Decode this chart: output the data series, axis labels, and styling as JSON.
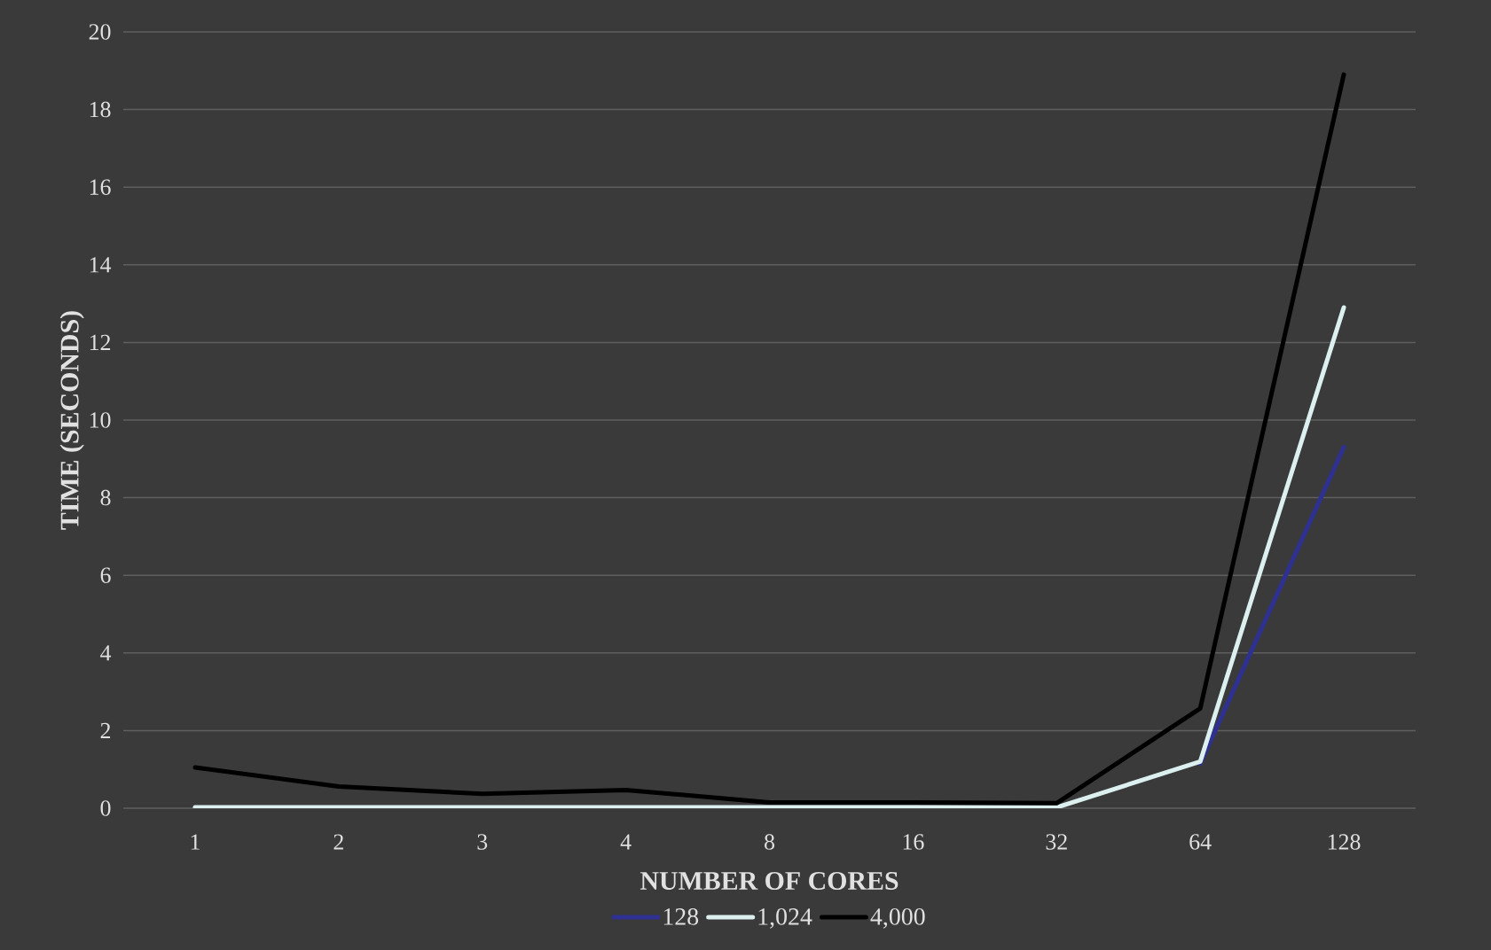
{
  "chart_data": {
    "type": "line",
    "xlabel": "NUMBER OF CORES",
    "ylabel": "TIME (SECONDS)",
    "categories": [
      "1",
      "2",
      "3",
      "4",
      "8",
      "16",
      "32",
      "64",
      "128"
    ],
    "series": [
      {
        "name": "128",
        "color": "#2e3192",
        "values": [
          null,
          null,
          null,
          null,
          null,
          null,
          null,
          1.15,
          9.3
        ]
      },
      {
        "name": "1,024",
        "color": "#dcf0f0",
        "values": [
          0.02,
          0.02,
          0.02,
          0.02,
          0.02,
          0.02,
          0.02,
          1.2,
          12.9
        ]
      },
      {
        "name": "4,000",
        "color": "#000000",
        "values": [
          1.05,
          0.56,
          0.37,
          0.47,
          0.15,
          0.15,
          0.13,
          2.57,
          18.9
        ]
      }
    ],
    "ylim": [
      0,
      20
    ],
    "yticks": [
      0,
      2,
      4,
      6,
      8,
      10,
      12,
      14,
      16,
      18,
      20
    ],
    "grid": "y",
    "legend": "bottom",
    "marker": "none",
    "line_style": "solid"
  }
}
